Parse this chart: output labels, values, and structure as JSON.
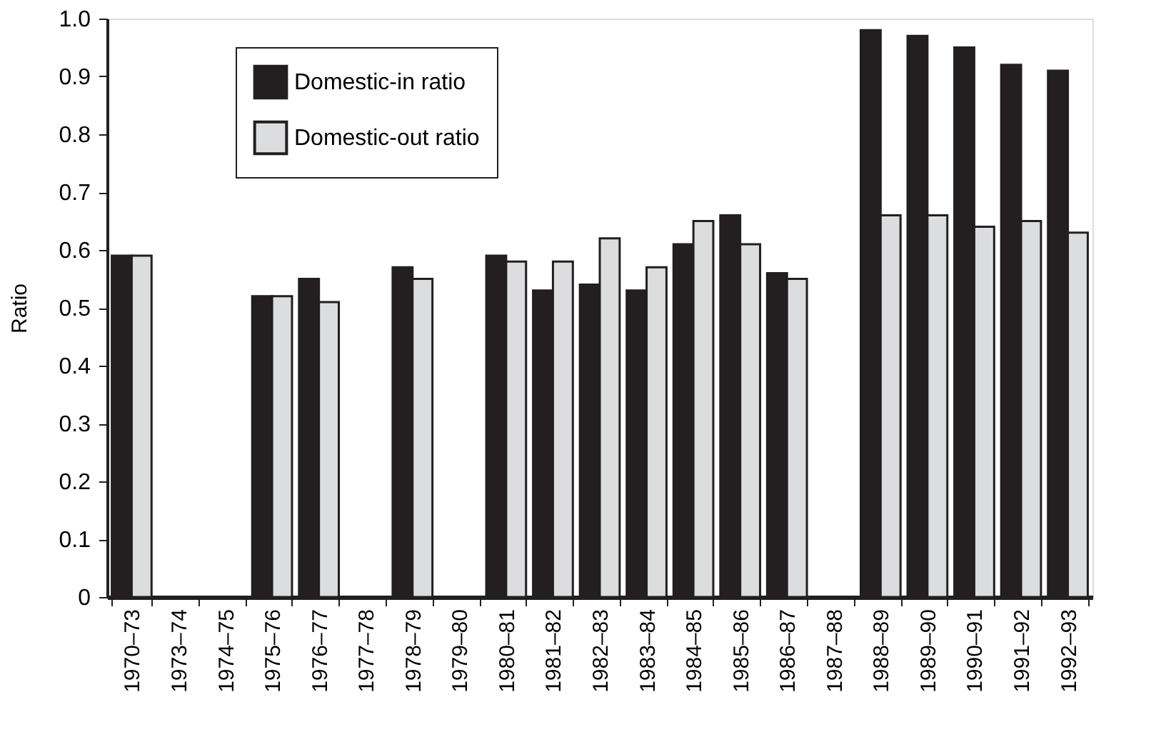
{
  "chart_data": {
    "type": "bar",
    "ylabel": "Ratio",
    "categories": [
      "1970–73",
      "1973–74",
      "1974–75",
      "1975–76",
      "1976–77",
      "1977–78",
      "1978–79",
      "1979–80",
      "1980–81",
      "1981–82",
      "1982–83",
      "1983–84",
      "1984–85",
      "1985–86",
      "1986–87",
      "1987–88",
      "1988–89",
      "1989–90",
      "1990–91",
      "1991–92",
      "1992–93"
    ],
    "series": [
      {
        "name": "Domestic-in ratio",
        "color": "#231f20",
        "values": [
          0.59,
          null,
          null,
          0.52,
          0.55,
          null,
          0.57,
          null,
          0.59,
          0.53,
          0.54,
          0.53,
          0.61,
          0.66,
          0.56,
          null,
          0.98,
          0.97,
          0.95,
          0.92,
          0.91
        ]
      },
      {
        "name": "Domestic-out ratio",
        "color": "#dcdddf",
        "values": [
          0.59,
          null,
          null,
          0.52,
          0.51,
          null,
          0.55,
          null,
          0.58,
          0.58,
          0.62,
          0.57,
          0.65,
          0.61,
          0.55,
          null,
          0.66,
          0.66,
          0.64,
          0.65,
          0.63
        ]
      }
    ],
    "ylim": [
      0,
      1.0
    ],
    "yticks": [
      0,
      0.1,
      0.2,
      0.3,
      0.4,
      0.5,
      0.6,
      0.7,
      0.8,
      0.9,
      {
        "value": 1.0,
        "label": "1.0"
      }
    ],
    "grid": false,
    "legend": "top left"
  }
}
